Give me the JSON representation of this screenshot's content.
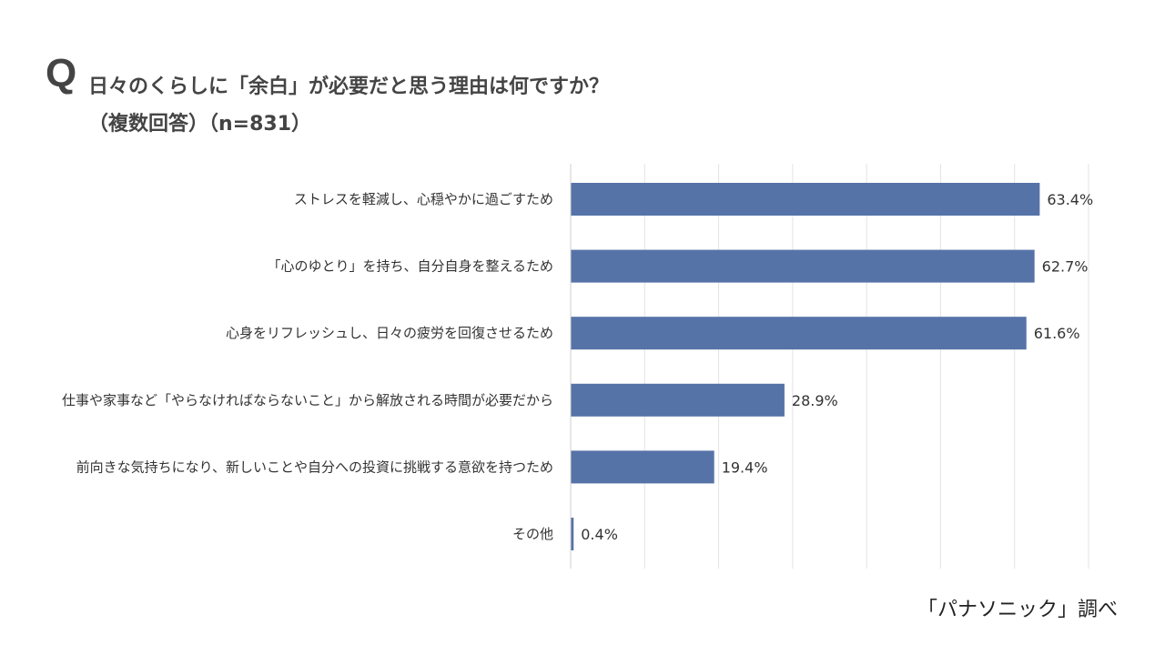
{
  "header": {
    "q_mark": "Q",
    "title": "日々のくらしに「余白」が必要だと思う理由は何ですか？",
    "subtitle": "（複数回答）（n=831）"
  },
  "source": "「パナソニック」調べ",
  "chart_data": {
    "type": "bar",
    "orientation": "horizontal",
    "title": "日々のくらしに「余白」が必要だと思う理由は何ですか？",
    "categories": [
      "ストレスを軽減し、心穏やかに過ごすため",
      "「心のゆとり」を持ち、自分自身を整えるため",
      "心身をリフレッシュし、日々の疲労を回復させるため",
      "仕事や家事など「やらなければならないこと」から解放される時間が必要だから",
      "前向きな気持ちになり、新しいことや自分への投資に挑戦する意欲を持つため",
      "その他"
    ],
    "values": [
      63.4,
      62.7,
      61.6,
      28.9,
      19.4,
      0.4
    ],
    "value_labels": [
      "63.4%",
      "62.7%",
      "61.6%",
      "28.9%",
      "19.4%",
      "0.4%"
    ],
    "xlim": [
      0,
      70
    ],
    "grid": true,
    "bar_color": "#5673a8",
    "grid_color": "#e3e3e3"
  }
}
